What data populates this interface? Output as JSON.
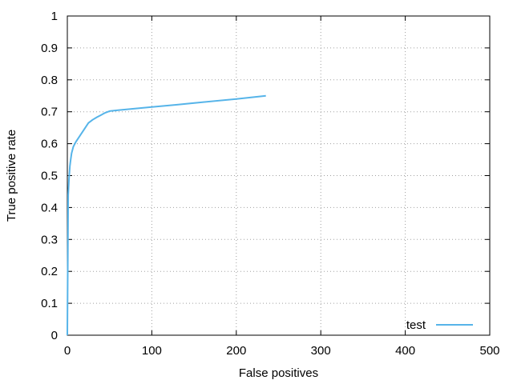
{
  "chart_data": {
    "type": "line",
    "xlabel": "False positives",
    "ylabel": "True positive rate",
    "xlim": [
      0,
      500
    ],
    "ylim": [
      0,
      1
    ],
    "xticks": [
      0,
      100,
      200,
      300,
      400,
      500
    ],
    "yticks": [
      0,
      0.1,
      0.2,
      0.3,
      0.4,
      0.5,
      0.6,
      0.7,
      0.8,
      0.9,
      1
    ],
    "grid": true,
    "legend_position": "bottom-right",
    "series": [
      {
        "name": "test",
        "color": "#56b4e9",
        "x": [
          0,
          1,
          2,
          3,
          4,
          5,
          7,
          10,
          15,
          20,
          25,
          30,
          35,
          40,
          45,
          50,
          60,
          80,
          100,
          130,
          160,
          200,
          235
        ],
        "y": [
          0,
          0.44,
          0.49,
          0.53,
          0.55,
          0.57,
          0.59,
          0.605,
          0.625,
          0.645,
          0.665,
          0.675,
          0.683,
          0.69,
          0.697,
          0.702,
          0.705,
          0.71,
          0.715,
          0.722,
          0.73,
          0.74,
          0.75
        ]
      }
    ]
  }
}
